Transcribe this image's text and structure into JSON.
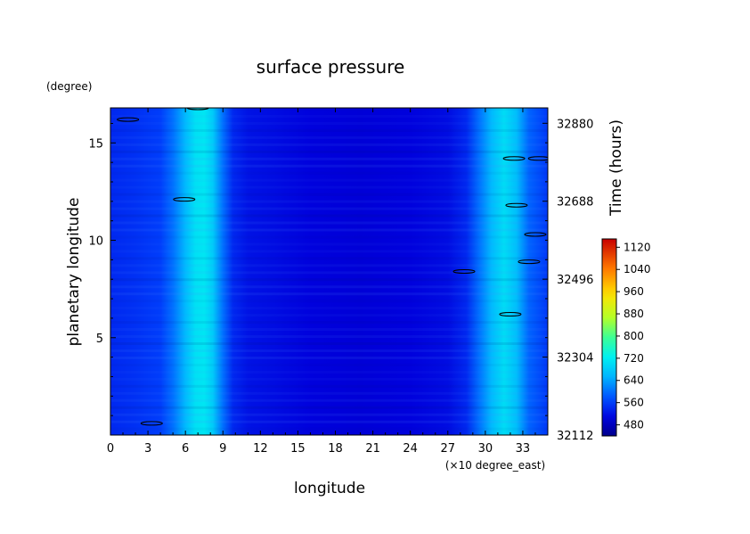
{
  "chart_data": {
    "type": "heatmap",
    "title": "surface pressure",
    "xlabel": "longitude",
    "xunit": "(×10 degree_east)",
    "ylabel": "planetary longitude",
    "yunit": "(degree)",
    "y2label": "Time (hours)",
    "xlim": [
      0,
      35
    ],
    "ylim": [
      0,
      16.8
    ],
    "x_ticks": [
      0,
      3,
      6,
      9,
      12,
      15,
      18,
      21,
      24,
      27,
      30,
      33
    ],
    "y_ticks": [
      5,
      10,
      15
    ],
    "time_ticks": [
      32112,
      32304,
      32496,
      32688,
      32880
    ],
    "time_lim": [
      32112,
      32918
    ],
    "colorbar": {
      "labels": [
        480,
        560,
        640,
        720,
        800,
        880,
        960,
        1040,
        1120
      ],
      "min": 440,
      "max": 1150
    },
    "value_profile": {
      "x": [
        0,
        2,
        4,
        5,
        6,
        6.8,
        7.5,
        8.2,
        9,
        9.8,
        11,
        13,
        16,
        20,
        24,
        27,
        28.5,
        29.5,
        30.5,
        31.5,
        32.5,
        33.5,
        35
      ],
      "value": [
        540,
        548,
        560,
        600,
        660,
        705,
        712,
        680,
        600,
        540,
        520,
        515,
        505,
        500,
        505,
        515,
        540,
        600,
        660,
        700,
        665,
        590,
        555
      ]
    },
    "contour_patches": [
      {
        "x": 1.4,
        "y": 16.2
      },
      {
        "x": 7.0,
        "y": 16.8
      },
      {
        "x": 5.9,
        "y": 12.1
      },
      {
        "x": 32.3,
        "y": 14.2
      },
      {
        "x": 34.3,
        "y": 14.2
      },
      {
        "x": 32.5,
        "y": 11.8
      },
      {
        "x": 34.0,
        "y": 10.3
      },
      {
        "x": 33.5,
        "y": 8.9
      },
      {
        "x": 28.3,
        "y": 8.4
      },
      {
        "x": 32.0,
        "y": 6.2
      },
      {
        "x": 3.3,
        "y": 0.6
      }
    ]
  }
}
